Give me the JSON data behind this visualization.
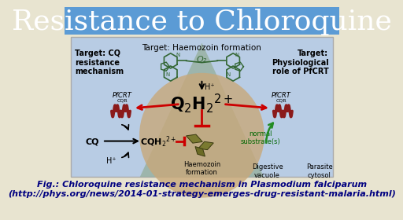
{
  "title": "Resistance to Chloroquine",
  "title_fontsize": 26,
  "title_bg_color": "#5b9bd5",
  "diagram_bg": "#b8cce4",
  "footer_bg": "#e8e4d0",
  "footer_url": "(http://phys.org/news/2014-01-strategy-emerges-drug-resistant-malaria.html)",
  "footer_color": "#000080",
  "footer_fontsize": 8.0,
  "label_left_top": "Target: CQ\nresistance\nmechanism",
  "label_right_top": "Target:\nPhysiological\nrole of PfCRT",
  "label_center_top": "Target: Haemozoin formation",
  "label_q2h2": "Q₂H₂²⁺",
  "label_cq": "CQ",
  "label_haemozoin": "Haemozoin\nformation",
  "label_normal_sub": "normal\nsubstrate(s)",
  "label_digestive": "Digestive\nvacuole",
  "label_parasite": "Parasite\ncytosol",
  "label_hplus1": "H⁺",
  "label_hplus2": "H⁺",
  "label_q2": "Q₂",
  "cone_color": "#8faa8f",
  "circle_color": "#c8a87a",
  "arrow_red": "#cc0000",
  "arrow_green": "#228b22",
  "protein_color": "#8b1a1a",
  "haemozoin_color": "#6b6b2a"
}
